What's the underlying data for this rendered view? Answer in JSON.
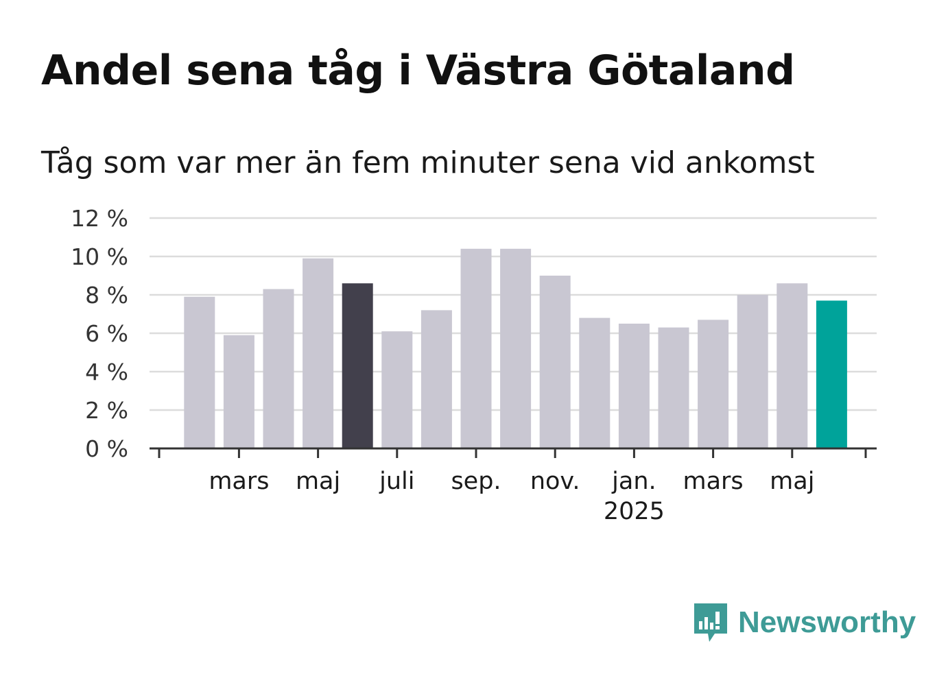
{
  "title": "Andel sena tåg i Västra Götaland",
  "subtitle": "Tåg som var mer än fem minuter sena vid ankomst",
  "brand": {
    "name": "Newsworthy",
    "icon": "newsworthy-logo-icon",
    "color": "#3e9b96"
  },
  "colors": {
    "default_bar": "#c9c7d2",
    "highlight_bar": "#42404c",
    "latest_bar": "#00a39a",
    "grid": "#dcdcdc",
    "axis": "#333333"
  },
  "chart_data": {
    "type": "bar",
    "title": "Andel sena tåg i Västra Götaland",
    "subtitle": "Tåg som var mer än fem minuter sena vid ankomst",
    "x": [
      "2024-02",
      "2024-03",
      "2024-04",
      "2024-05",
      "2024-06",
      "2024-07",
      "2024-08",
      "2024-09",
      "2024-10",
      "2024-11",
      "2024-12",
      "2025-01",
      "2025-02",
      "2025-03",
      "2025-04",
      "2025-05",
      "2025-06"
    ],
    "values": [
      7.9,
      5.9,
      8.3,
      9.9,
      8.6,
      6.1,
      7.2,
      10.4,
      10.4,
      9.0,
      6.8,
      6.5,
      6.3,
      6.7,
      8.0,
      8.6,
      7.7
    ],
    "highlight": {
      "2024-06": "highlight_bar",
      "2025-06": "latest_bar"
    },
    "ylim": [
      0,
      12
    ],
    "yticks": [
      0,
      2,
      4,
      6,
      8,
      10,
      12
    ],
    "ytick_labels": [
      "0 %",
      "2 %",
      "4 %",
      "6 %",
      "8 %",
      "10 %",
      "12 %"
    ],
    "xticks": [
      {
        "label": "mars",
        "at": "2024-03"
      },
      {
        "label": "maj",
        "at": "2024-05"
      },
      {
        "label": "juli",
        "at": "2024-07"
      },
      {
        "label": "sep.",
        "at": "2024-09"
      },
      {
        "label": "nov.",
        "at": "2024-11"
      },
      {
        "label": "jan.",
        "sublabel": "2025",
        "at": "2025-01"
      },
      {
        "label": "mars",
        "at": "2025-03"
      },
      {
        "label": "maj",
        "at": "2025-05"
      }
    ],
    "grid": true,
    "legend": "none"
  }
}
